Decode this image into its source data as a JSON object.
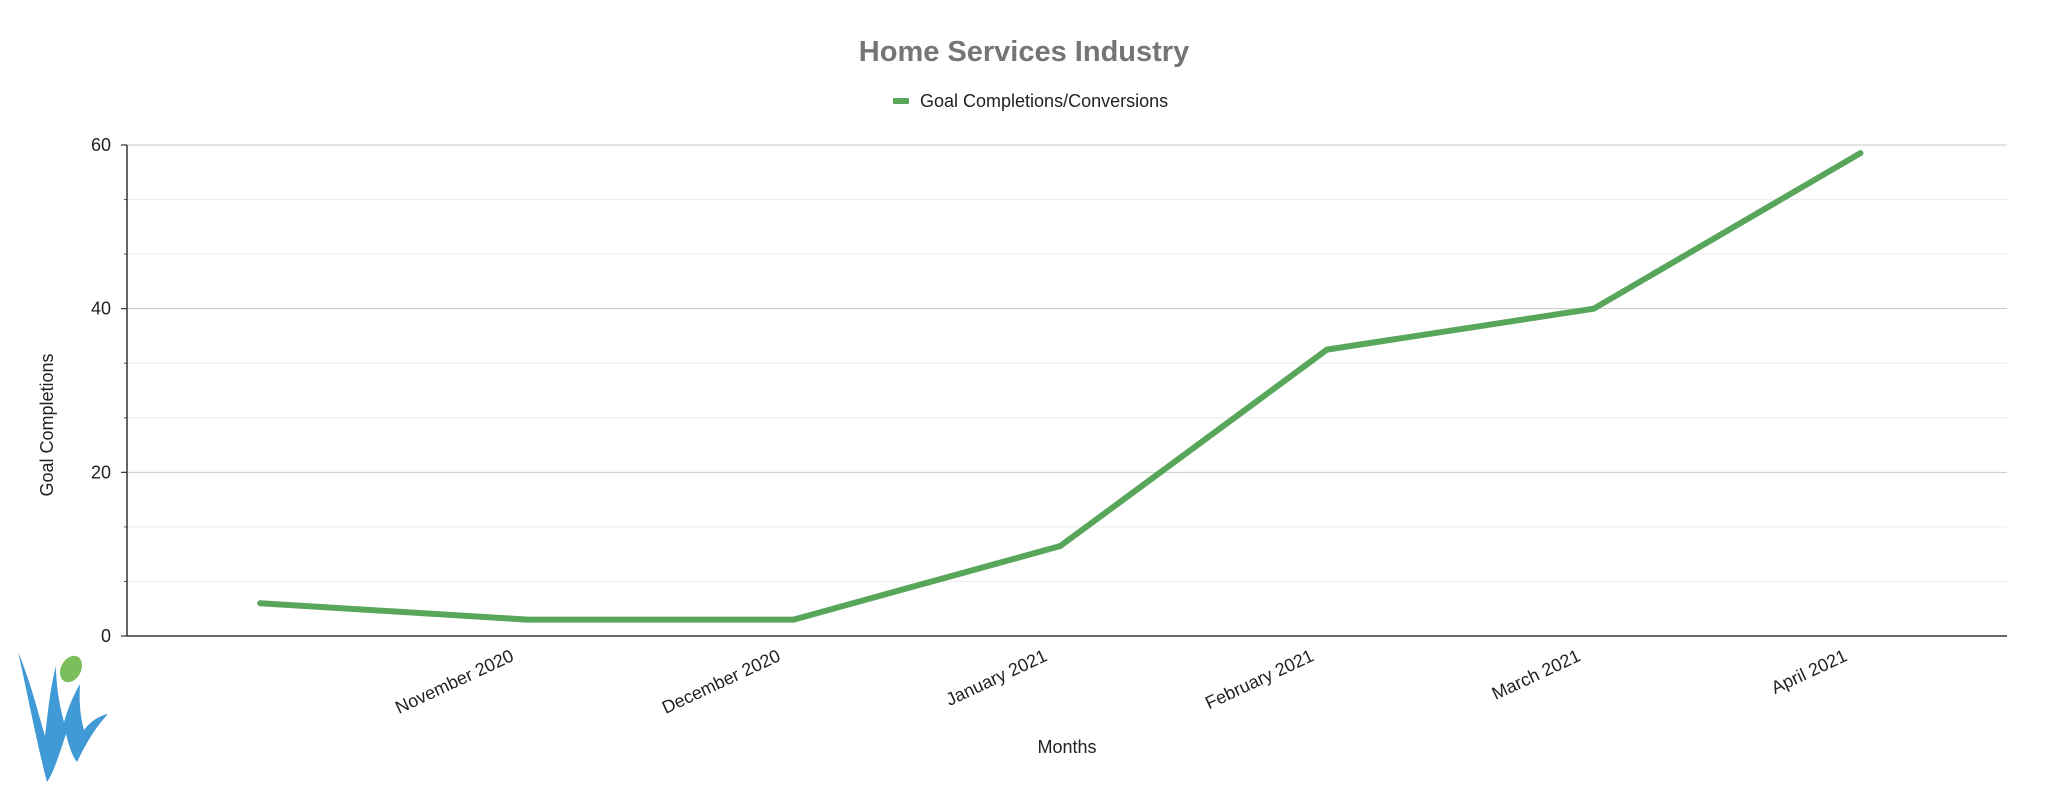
{
  "chart_data": {
    "type": "line",
    "title": "Home Services Industry",
    "xlabel": "Months",
    "ylabel": "Goal Completions",
    "categories": [
      "",
      "November 2020",
      "December 2020",
      "January 2021",
      "February 2021",
      "March 2021",
      "April 2021"
    ],
    "series": [
      {
        "name": "Goal Completions/Conversions",
        "values": [
          4,
          2,
          2,
          11,
          35,
          40,
          59
        ],
        "color": "#57a65a"
      }
    ],
    "ylim": [
      0,
      60
    ],
    "yticks": [
      "0",
      "20",
      "40",
      "60"
    ],
    "grid": true,
    "legend": "top-center"
  },
  "logo": {
    "name": "brand-logo",
    "colors": {
      "primary": "#3f9ad6",
      "accent": "#7bbf5c"
    }
  }
}
